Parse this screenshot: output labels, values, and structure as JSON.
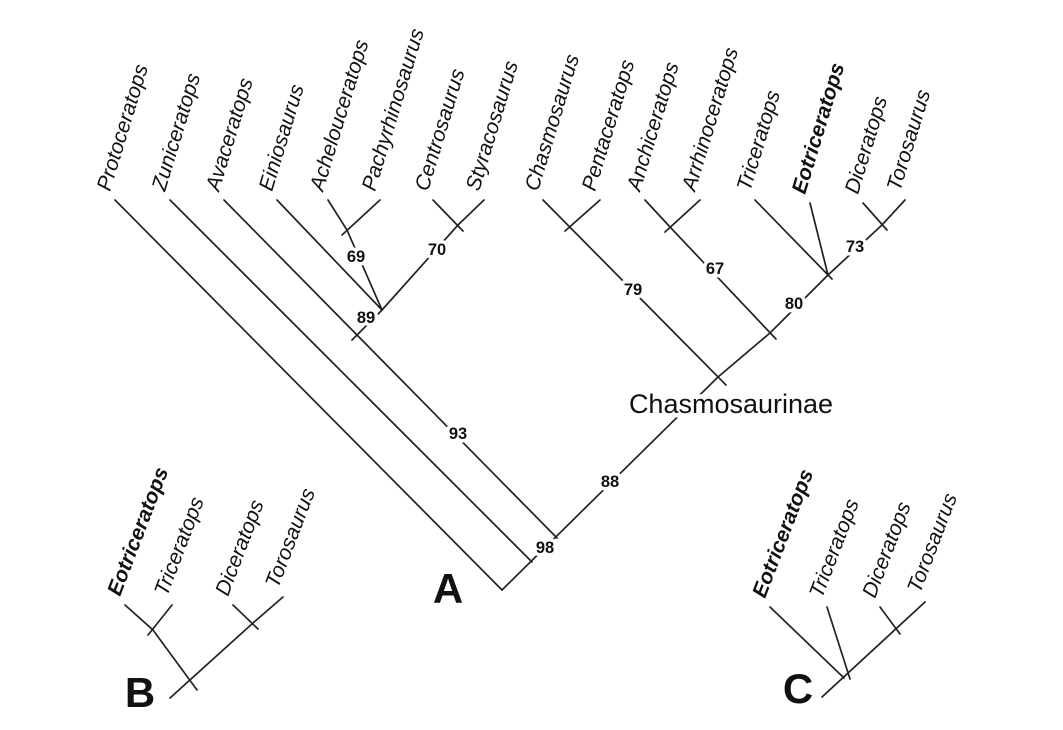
{
  "figure": {
    "background": "#ffffff",
    "line_color": "#222222",
    "text_color": "#111111"
  },
  "panel_a": {
    "letter": "A",
    "clade_label": "Chasmosaurinae",
    "taxa": [
      {
        "name": "Protoceratops",
        "bold": false
      },
      {
        "name": "Zuniceratops",
        "bold": false
      },
      {
        "name": "Avaceratops",
        "bold": false
      },
      {
        "name": "Einiosaurus",
        "bold": false
      },
      {
        "name": "Achelouceratops",
        "bold": false
      },
      {
        "name": "Pachyrhinosaurus",
        "bold": false
      },
      {
        "name": "Centrosaurus",
        "bold": false
      },
      {
        "name": "Styracosaurus",
        "bold": false
      },
      {
        "name": "Chasmosaurus",
        "bold": false
      },
      {
        "name": "Pentaceratops",
        "bold": false
      },
      {
        "name": "Anchiceratops",
        "bold": false
      },
      {
        "name": "Arrhinoceratops",
        "bold": false
      },
      {
        "name": "Triceratops",
        "bold": false
      },
      {
        "name": "Eotriceratops",
        "bold": true
      },
      {
        "name": "Diceratops",
        "bold": false
      },
      {
        "name": "Torosaurus",
        "bold": false
      }
    ],
    "supports": [
      {
        "value": "69"
      },
      {
        "value": "70"
      },
      {
        "value": "89"
      },
      {
        "value": "93"
      },
      {
        "value": "98"
      },
      {
        "value": "88"
      },
      {
        "value": "79"
      },
      {
        "value": "67"
      },
      {
        "value": "80"
      },
      {
        "value": "73"
      }
    ],
    "topology_newick": "(Protoceratops,(Zuniceratops,((Avaceratops,(Einiosaurus,(Achelouceratops,Pachyrhinosaurus)69,(Centrosaurus,Styracosaurus)70)89)93,((Chasmosaurus,Pentaceratops)79,((Anchiceratops,Arrhinoceratops)67,(Triceratops,Eotriceratops,(Diceratops,Torosaurus)73)80))88)98))"
  },
  "panel_b": {
    "letter": "B",
    "taxa": [
      {
        "name": "Eotriceratops",
        "bold": true
      },
      {
        "name": "Triceratops",
        "bold": false
      },
      {
        "name": "Diceratops",
        "bold": false
      },
      {
        "name": "Torosaurus",
        "bold": false
      }
    ],
    "topology_newick": "((Eotriceratops,Triceratops),(Diceratops,Torosaurus))"
  },
  "panel_c": {
    "letter": "C",
    "taxa": [
      {
        "name": "Eotriceratops",
        "bold": true
      },
      {
        "name": "Triceratops",
        "bold": false
      },
      {
        "name": "Diceratops",
        "bold": false
      },
      {
        "name": "Torosaurus",
        "bold": false
      }
    ],
    "topology_newick": "(Eotriceratops,(Triceratops,(Diceratops,Torosaurus)))"
  }
}
